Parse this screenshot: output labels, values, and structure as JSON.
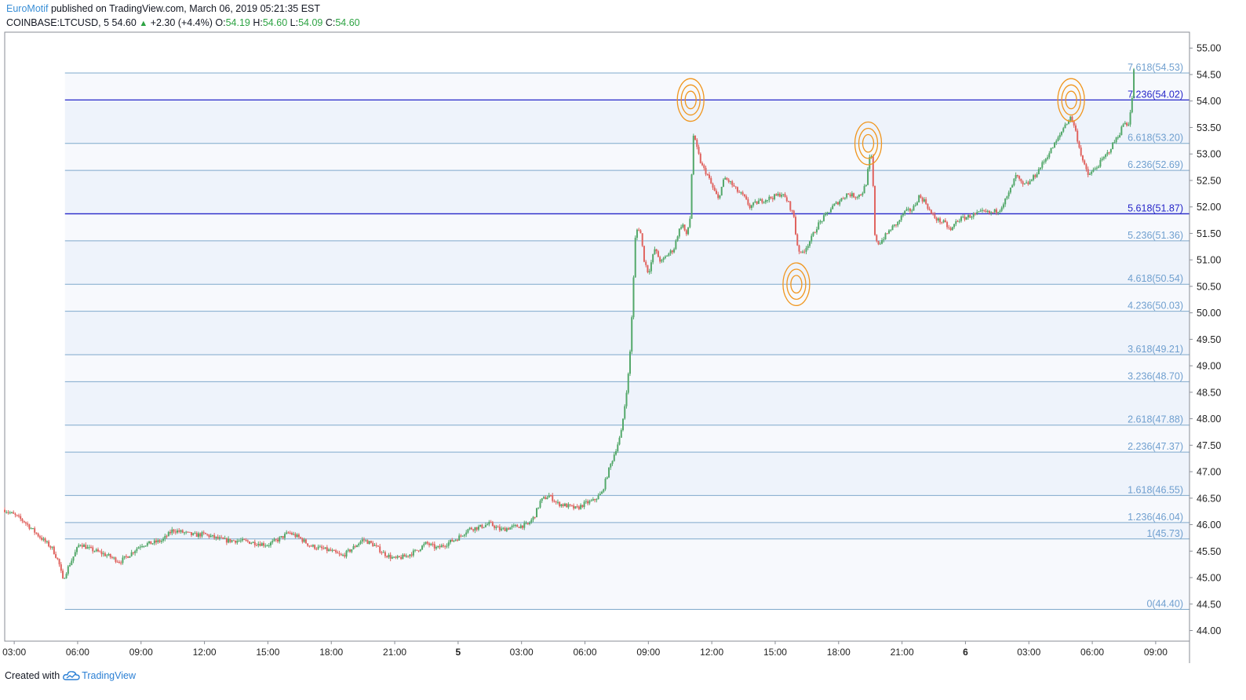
{
  "header": {
    "author": "EuroMotif",
    "published_text": "published on TradingView.com, March 06, 2019 05:21:35 EST",
    "symbol": "COINBASE:LTCUSD, 5",
    "last_price": "54.60",
    "change": "+2.30 (+4.4%)",
    "open_label": "O:",
    "open": "54.19",
    "high_label": "H:",
    "high": "54.60",
    "low_label": "L:",
    "low": "54.09",
    "close_label": "C:",
    "close": "54.60"
  },
  "footer": {
    "created_with": "Created with",
    "brand": "TradingView"
  },
  "chart_data": {
    "type": "candlestick",
    "symbol": "COINBASE:LTCUSD",
    "timeframe": "5",
    "ylim": [
      43.8,
      55.3
    ],
    "y_ticks": [
      "55.00",
      "54.50",
      "54.00",
      "53.50",
      "53.00",
      "52.50",
      "52.00",
      "51.50",
      "51.00",
      "50.50",
      "50.00",
      "49.50",
      "49.00",
      "48.50",
      "48.00",
      "47.50",
      "47.00",
      "46.50",
      "46.00",
      "45.50",
      "45.00",
      "44.50",
      "44.00"
    ],
    "x_ticks": [
      "03:00",
      "06:00",
      "09:00",
      "12:00",
      "15:00",
      "18:00",
      "21:00",
      "5",
      "03:00",
      "06:00",
      "09:00",
      "12:00",
      "15:00",
      "18:00",
      "21:00",
      "6",
      "03:00",
      "06:00",
      "09:00"
    ],
    "x_tick_hours": [
      3,
      6,
      9,
      12,
      15,
      18,
      21,
      24,
      27,
      30,
      33,
      36,
      39,
      42,
      45,
      48,
      51,
      54,
      57
    ],
    "x_range_hours": [
      2.55,
      58.6
    ],
    "colors": {
      "up": "#53a86a",
      "down": "#e0635f",
      "fib_line": "#7fa9cc",
      "fib_label": "#6f9fcf",
      "key_level": "#2626c9",
      "fib_band": "#eef3fb",
      "marker": "#f0961e"
    },
    "fibonacci_levels": [
      {
        "ratio": "0",
        "price": 44.4,
        "label": "0(44.40)"
      },
      {
        "ratio": "1",
        "price": 45.73,
        "label": "1(45.73)"
      },
      {
        "ratio": "1.236",
        "price": 46.04,
        "label": "1.236(46.04)"
      },
      {
        "ratio": "1.618",
        "price": 46.55,
        "label": "1.618(46.55)"
      },
      {
        "ratio": "2.236",
        "price": 47.37,
        "label": "2.236(47.37)"
      },
      {
        "ratio": "2.618",
        "price": 47.88,
        "label": "2.618(47.88)"
      },
      {
        "ratio": "3.236",
        "price": 48.7,
        "label": "3.236(48.70)"
      },
      {
        "ratio": "3.618",
        "price": 49.21,
        "label": "3.618(49.21)"
      },
      {
        "ratio": "4.236",
        "price": 50.03,
        "label": "4.236(50.03)"
      },
      {
        "ratio": "4.618",
        "price": 50.54,
        "label": "4.618(50.54)"
      },
      {
        "ratio": "5.236",
        "price": 51.36,
        "label": "5.236(51.36)"
      },
      {
        "ratio": "5.618",
        "price": 51.87,
        "label": "5.618(51.87)",
        "key": true
      },
      {
        "ratio": "6.236",
        "price": 52.69,
        "label": "6.236(52.69)"
      },
      {
        "ratio": "6.618",
        "price": 53.2,
        "label": "6.618(53.20)"
      },
      {
        "ratio": "7.236",
        "price": 54.02,
        "label": "7.236(54.02)",
        "key": true
      },
      {
        "ratio": "7.618",
        "price": 54.53,
        "label": "7.618(54.53)"
      }
    ],
    "fib_start_hour": 5.4,
    "markers": [
      {
        "hour": 35.0,
        "price": 54.02
      },
      {
        "hour": 43.4,
        "price": 53.2
      },
      {
        "hour": 40.0,
        "price": 50.54
      },
      {
        "hour": 53.0,
        "price": 54.02
      }
    ],
    "price_path": [
      [
        2.55,
        46.28
      ],
      [
        3.0,
        46.18
      ],
      [
        3.5,
        46.05
      ],
      [
        4.0,
        45.85
      ],
      [
        4.4,
        45.7
      ],
      [
        4.8,
        45.55
      ],
      [
        5.1,
        45.3
      ],
      [
        5.3,
        44.95
      ],
      [
        5.5,
        45.15
      ],
      [
        5.8,
        45.4
      ],
      [
        6.1,
        45.65
      ],
      [
        6.5,
        45.55
      ],
      [
        7.0,
        45.48
      ],
      [
        7.5,
        45.4
      ],
      [
        8.0,
        45.3
      ],
      [
        8.5,
        45.45
      ],
      [
        9.0,
        45.62
      ],
      [
        9.5,
        45.65
      ],
      [
        10.0,
        45.7
      ],
      [
        10.5,
        45.9
      ],
      [
        11.0,
        45.85
      ],
      [
        11.5,
        45.8
      ],
      [
        12.0,
        45.82
      ],
      [
        12.5,
        45.75
      ],
      [
        13.0,
        45.7
      ],
      [
        13.5,
        45.7
      ],
      [
        14.0,
        45.68
      ],
      [
        14.5,
        45.65
      ],
      [
        15.0,
        45.62
      ],
      [
        15.5,
        45.72
      ],
      [
        16.0,
        45.85
      ],
      [
        16.5,
        45.75
      ],
      [
        17.0,
        45.6
      ],
      [
        17.5,
        45.55
      ],
      [
        18.0,
        45.5
      ],
      [
        18.5,
        45.4
      ],
      [
        19.0,
        45.55
      ],
      [
        19.5,
        45.72
      ],
      [
        20.0,
        45.62
      ],
      [
        20.5,
        45.45
      ],
      [
        21.0,
        45.35
      ],
      [
        21.5,
        45.4
      ],
      [
        22.0,
        45.5
      ],
      [
        22.5,
        45.65
      ],
      [
        23.0,
        45.55
      ],
      [
        23.5,
        45.65
      ],
      [
        24.0,
        45.75
      ],
      [
        24.5,
        45.92
      ],
      [
        25.0,
        45.95
      ],
      [
        25.5,
        46.02
      ],
      [
        26.0,
        45.9
      ],
      [
        26.5,
        45.95
      ],
      [
        27.0,
        45.98
      ],
      [
        27.3,
        46.0
      ],
      [
        27.6,
        46.15
      ],
      [
        27.9,
        46.45
      ],
      [
        28.3,
        46.55
      ],
      [
        28.7,
        46.4
      ],
      [
        29.2,
        46.35
      ],
      [
        29.6,
        46.3
      ],
      [
        30.0,
        46.4
      ],
      [
        30.4,
        46.45
      ],
      [
        30.8,
        46.6
      ],
      [
        31.1,
        47.0
      ],
      [
        31.4,
        47.35
      ],
      [
        31.7,
        47.7
      ],
      [
        31.9,
        48.3
      ],
      [
        32.1,
        49.0
      ],
      [
        32.25,
        50.2
      ],
      [
        32.4,
        51.55
      ],
      [
        32.6,
        51.6
      ],
      [
        32.8,
        51.0
      ],
      [
        33.0,
        50.75
      ],
      [
        33.3,
        51.2
      ],
      [
        33.6,
        50.95
      ],
      [
        33.9,
        51.1
      ],
      [
        34.2,
        51.2
      ],
      [
        34.4,
        51.5
      ],
      [
        34.6,
        51.7
      ],
      [
        34.8,
        51.45
      ],
      [
        35.0,
        51.85
      ],
      [
        35.1,
        53.4
      ],
      [
        35.3,
        53.1
      ],
      [
        35.5,
        52.8
      ],
      [
        35.8,
        52.6
      ],
      [
        36.0,
        52.4
      ],
      [
        36.3,
        52.15
      ],
      [
        36.6,
        52.55
      ],
      [
        36.9,
        52.45
      ],
      [
        37.2,
        52.3
      ],
      [
        37.5,
        52.2
      ],
      [
        37.8,
        52.0
      ],
      [
        38.2,
        52.1
      ],
      [
        38.6,
        52.15
      ],
      [
        39.0,
        52.2
      ],
      [
        39.3,
        52.25
      ],
      [
        39.6,
        52.1
      ],
      [
        39.9,
        51.8
      ],
      [
        40.0,
        51.35
      ],
      [
        40.2,
        51.1
      ],
      [
        40.4,
        51.2
      ],
      [
        40.7,
        51.4
      ],
      [
        41.0,
        51.65
      ],
      [
        41.3,
        51.8
      ],
      [
        41.7,
        52.0
      ],
      [
        42.0,
        52.1
      ],
      [
        42.4,
        52.25
      ],
      [
        42.8,
        52.2
      ],
      [
        43.1,
        52.25
      ],
      [
        43.3,
        52.45
      ],
      [
        43.5,
        53.0
      ],
      [
        43.6,
        52.85
      ],
      [
        43.7,
        51.45
      ],
      [
        43.9,
        51.3
      ],
      [
        44.2,
        51.45
      ],
      [
        44.5,
        51.6
      ],
      [
        44.8,
        51.7
      ],
      [
        45.1,
        51.9
      ],
      [
        45.5,
        51.95
      ],
      [
        45.8,
        52.2
      ],
      [
        46.1,
        52.1
      ],
      [
        46.4,
        51.85
      ],
      [
        46.7,
        51.75
      ],
      [
        47.0,
        51.7
      ],
      [
        47.3,
        51.55
      ],
      [
        47.6,
        51.75
      ],
      [
        48.0,
        51.8
      ],
      [
        48.4,
        51.85
      ],
      [
        48.8,
        51.9
      ],
      [
        49.2,
        51.88
      ],
      [
        49.6,
        51.95
      ],
      [
        50.0,
        52.2
      ],
      [
        50.4,
        52.6
      ],
      [
        50.7,
        52.4
      ],
      [
        51.0,
        52.45
      ],
      [
        51.3,
        52.6
      ],
      [
        51.7,
        52.85
      ],
      [
        52.0,
        53.05
      ],
      [
        52.4,
        53.3
      ],
      [
        52.7,
        53.55
      ],
      [
        53.0,
        53.7
      ],
      [
        53.2,
        53.45
      ],
      [
        53.4,
        53.1
      ],
      [
        53.6,
        52.8
      ],
      [
        53.8,
        52.6
      ],
      [
        54.1,
        52.7
      ],
      [
        54.4,
        52.85
      ],
      [
        54.7,
        53.0
      ],
      [
        55.0,
        53.2
      ],
      [
        55.3,
        53.4
      ],
      [
        55.5,
        53.6
      ],
      [
        55.7,
        53.55
      ],
      [
        55.85,
        53.9
      ],
      [
        55.95,
        54.3
      ],
      [
        56.02,
        54.6
      ]
    ]
  }
}
